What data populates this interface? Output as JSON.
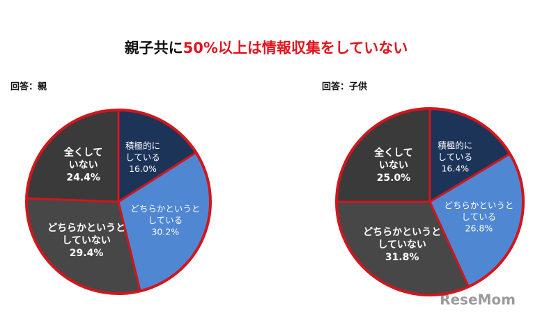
{
  "title_parts": [
    {
      "text": "親子共に",
      "color": "#111111"
    },
    {
      "text": "50%以上は情報収集をしていない",
      "color": "#e0141e"
    }
  ],
  "watermark": "ReseMom",
  "chart_data": [
    {
      "type": "pie",
      "label": "回答：親",
      "categories": [
        [
          "積極的に",
          "している"
        ],
        [
          "どちらかというと",
          "している"
        ],
        [
          "どちらかというと",
          "していない"
        ],
        [
          "全くして",
          "いない"
        ]
      ],
      "values": [
        16.0,
        30.2,
        29.4,
        24.4
      ],
      "value_labels": [
        "16.0%",
        "30.2%",
        "29.4%",
        "24.4%"
      ],
      "colors": [
        "#1d3459",
        "#4f87d3",
        "#474747",
        "#3a3a3a"
      ],
      "edge_color": "#d1161c"
    },
    {
      "type": "pie",
      "label": "回答：子供",
      "categories": [
        [
          "積極的に",
          "している"
        ],
        [
          "どちらかというと",
          "している"
        ],
        [
          "どちらかというと",
          "していない"
        ],
        [
          "全くして",
          "いない"
        ]
      ],
      "values": [
        16.4,
        26.8,
        31.8,
        25.0
      ],
      "value_labels": [
        "16.4%",
        "26.8%",
        "31.8%",
        "25.0%"
      ],
      "colors": [
        "#1d3459",
        "#4f87d3",
        "#474747",
        "#3a3a3a"
      ],
      "edge_color": "#d1161c"
    }
  ]
}
